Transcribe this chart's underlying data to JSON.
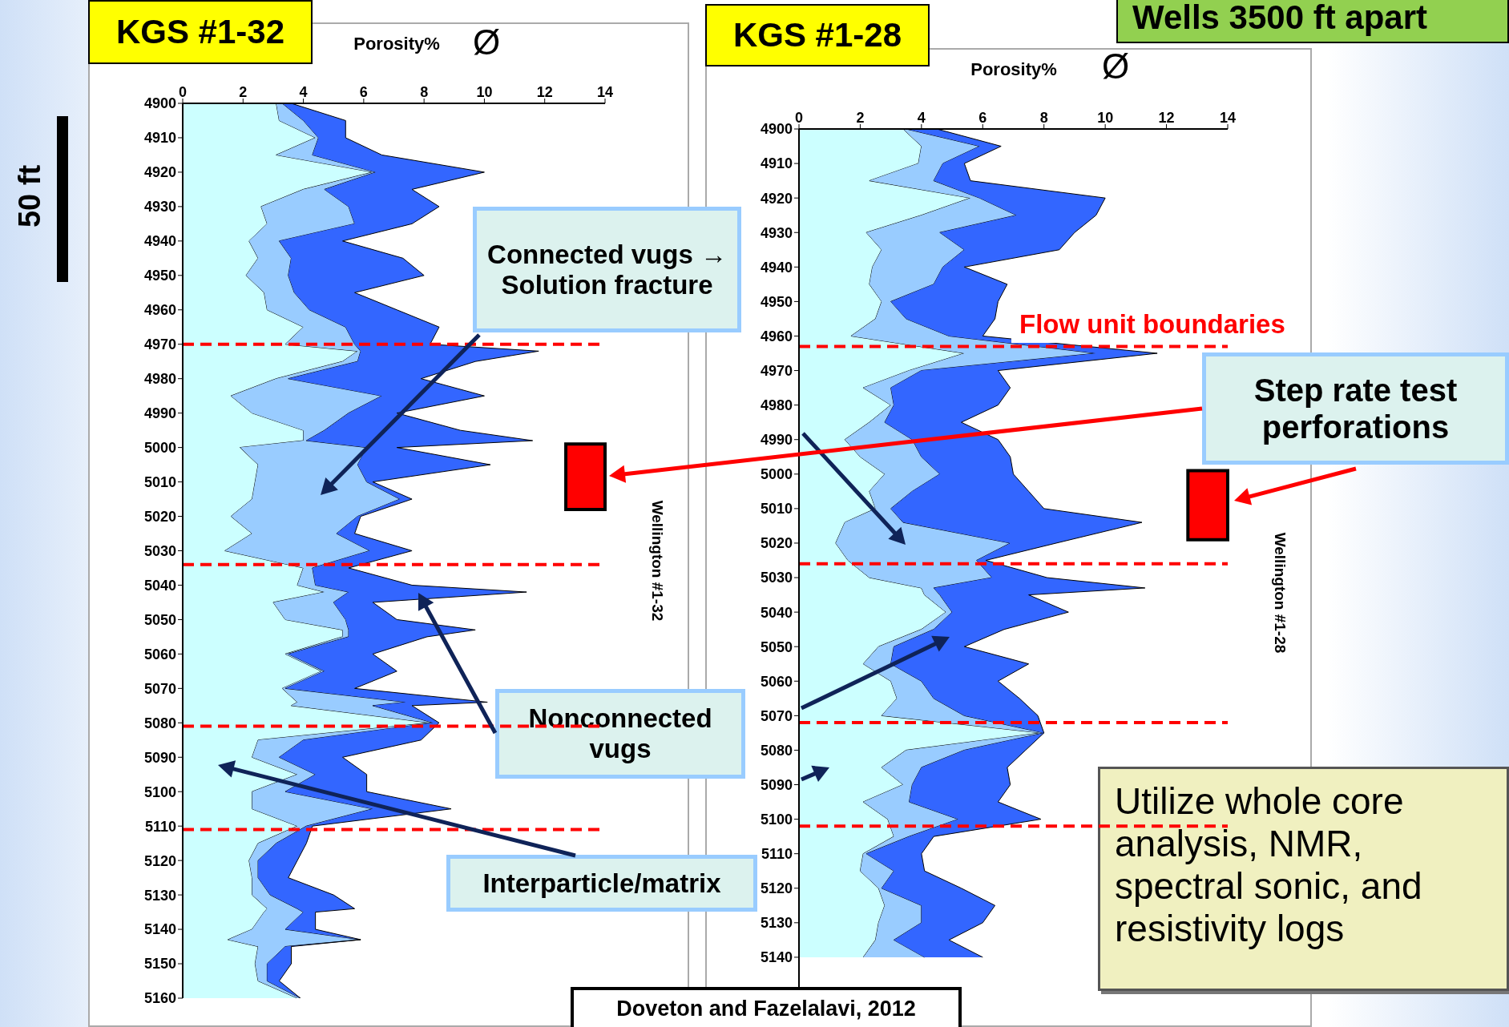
{
  "chart_data": [
    {
      "type": "area",
      "title": "KGS #1-32",
      "xlabel": "Porosity%",
      "orientation": "horizontal",
      "stacked": true,
      "annotations": [
        "Ø",
        "Wellington #1-32",
        "50 ft",
        "Connected vugs → Solution fracture",
        "Nonconnected vugs",
        "Interparticle/matrix",
        "Doveton and Fazelalavi, 2012"
      ],
      "x": [
        4900,
        4905,
        4910,
        4915,
        4920,
        4925,
        4930,
        4935,
        4940,
        4945,
        4950,
        4955,
        4960,
        4965,
        4970,
        4972,
        4975,
        4980,
        4985,
        4990,
        4995,
        4998,
        5000,
        5005,
        5010,
        5015,
        5020,
        5025,
        5030,
        5035,
        5040,
        5042,
        5045,
        5050,
        5053,
        5055,
        5060,
        5065,
        5070,
        5074,
        5075,
        5080,
        5085,
        5090,
        5095,
        5100,
        5105,
        5110,
        5115,
        5120,
        5125,
        5130,
        5134,
        5135,
        5140,
        5143,
        5145,
        5150,
        5155,
        5160
      ],
      "series": [
        {
          "color": "#ccffff",
          "values": [
            3.1,
            3.2,
            4.4,
            3.1,
            6.3,
            4.0,
            2.6,
            2.8,
            2.2,
            2.5,
            2.1,
            2.7,
            2.8,
            4.0,
            3.4,
            5.8,
            5.3,
            3.1,
            1.6,
            2.3,
            4.0,
            4.0,
            1.9,
            2.5,
            2.4,
            2.3,
            1.6,
            2.3,
            1.4,
            4.0,
            3.8,
            4.7,
            3.0,
            3.4,
            5.3,
            5.3,
            3.4,
            4.6,
            3.3,
            3.8,
            3.6,
            8.2,
            2.5,
            2.3,
            3.8,
            2.3,
            2.3,
            3.8,
            2.5,
            2.2,
            2.3,
            2.3,
            2.8,
            2.7,
            2.3,
            1.5,
            2.5,
            2.4,
            2.5,
            3.8
          ]
        },
        {
          "color": "#99ccff",
          "values": [
            0.2,
            0.8,
            0.1,
            1.2,
            0.1,
            0.7,
            2.9,
            2.9,
            1.0,
            1.1,
            1.4,
            1.0,
            1.4,
            1.4,
            2.3,
            0.1,
            0.5,
            0.4,
            5.0,
            3.2,
            0.7,
            0.1,
            4.2,
            3.3,
            3.7,
            4.9,
            4.2,
            2.8,
            4.8,
            0.3,
            0.6,
            0.8,
            2.0,
            2.0,
            0.2,
            0.2,
            0.1,
            0.1,
            0.1,
            3.6,
            2.7,
            0.1,
            1.5,
            0.9,
            0.6,
            1.1,
            4.0,
            0.3,
            0.6,
            0.3,
            0.2,
            0.6,
            1.0,
            1.3,
            1.1,
            4.4,
            0.9,
            0.4,
            0.3,
            0.1
          ]
        },
        {
          "color": "#3366ff",
          "values": [
            0.3,
            1.4,
            0.9,
            2.3,
            3.6,
            2.9,
            3.0,
            1.9,
            2.1,
            3.7,
            4.5,
            2.0,
            2.9,
            3.1,
            2.5,
            5.9,
            3.9,
            4.4,
            3.4,
            1.6,
            4.5,
            7.5,
            1.0,
            4.4,
            0.2,
            0.4,
            0.1,
            0.6,
            1.4,
            1.2,
            3.2,
            5.9,
            1.3,
            1.7,
            4.2,
            2.6,
            2.8,
            2.4,
            2.3,
            2.7,
            1.3,
            0.2,
            3.9,
            2.1,
            1.7,
            2.7,
            2.6,
            0.2,
            1.0,
            1.3,
            1.0,
            2.1,
            1.9,
            0.4,
            1.0,
            0.0,
            0.2,
            0.8,
            0.4,
            0.0
          ]
        }
      ],
      "xlim": [
        0,
        14
      ],
      "xticks": [
        0,
        2,
        4,
        6,
        8,
        10,
        12,
        14
      ],
      "ylim": [
        5160,
        4900
      ],
      "yticks": [
        4900,
        4910,
        4920,
        4930,
        4940,
        4950,
        4960,
        4970,
        4980,
        4990,
        5000,
        5010,
        5020,
        5030,
        5040,
        5050,
        5060,
        5070,
        5080,
        5090,
        5100,
        5110,
        5120,
        5130,
        5140,
        5150,
        5160
      ],
      "ref_lines": [
        {
          "axis": "y",
          "value": 4970,
          "color": "#ff0000",
          "line_style": "dashed"
        },
        {
          "axis": "y",
          "value": 5034,
          "color": "#ff0000",
          "line_style": "dashed"
        },
        {
          "axis": "y",
          "value": 5081,
          "color": "#ff0000",
          "line_style": "dashed"
        },
        {
          "axis": "y",
          "value": 5111,
          "color": "#ff0000",
          "line_style": "dashed"
        }
      ],
      "bands": [
        {
          "axis": "y",
          "from": 4999,
          "to": 5018,
          "color": "#ff0000"
        }
      ]
    },
    {
      "type": "area",
      "title": "KGS #1-28",
      "xlabel": "Porosity%",
      "orientation": "horizontal",
      "stacked": true,
      "annotations": [
        "Ø",
        "Wellington #1-28",
        "Wells 3500 ft apart",
        "Step rate test perforations",
        "Utilize whole core analysis, NMR, spectral sonic, and resistivity logs"
      ],
      "x": [
        4900,
        4905,
        4910,
        4915,
        4920,
        4925,
        4930,
        4935,
        4940,
        4945,
        4950,
        4955,
        4960,
        4965,
        4970,
        4975,
        4980,
        4985,
        4990,
        4995,
        5000,
        5005,
        5010,
        5014,
        5020,
        5025,
        5030,
        5033,
        5035,
        5040,
        5045,
        5050,
        5055,
        5060,
        5065,
        5070,
        5075,
        5080,
        5085,
        5090,
        5095,
        5100,
        5105,
        5110,
        5115,
        5120,
        5125,
        5130,
        5135,
        5140
      ],
      "series": [
        {
          "color": "#ccffff",
          "values": [
            3.4,
            4.0,
            3.9,
            2.3,
            5.6,
            4.0,
            2.2,
            2.7,
            2.4,
            2.3,
            2.7,
            2.5,
            1.7,
            5.4,
            3.6,
            2.1,
            3.0,
            2.3,
            1.5,
            2.0,
            2.8,
            2.3,
            2.5,
            1.5,
            1.2,
            1.6,
            2.3,
            4.0,
            4.1,
            4.8,
            4.0,
            2.6,
            2.1,
            3.0,
            3.2,
            2.7,
            7.9,
            3.5,
            2.7,
            3.4,
            2.1,
            2.9,
            3.1,
            2.1,
            2.0,
            2.6,
            2.8,
            2.6,
            2.5,
            2.1
          ]
        },
        {
          "color": "#99ccff",
          "values": [
            0.1,
            1.9,
            0.8,
            2.1,
            0.3,
            3.1,
            2.4,
            2.7,
            2.3,
            2.1,
            0.3,
            1.0,
            3.2,
            4.3,
            0.4,
            0.9,
            0.1,
            0.5,
            2.2,
            2.0,
            1.8,
            1.4,
            0.5,
            1.9,
            5.7,
            4.2,
            4.0,
            0.4,
            0.5,
            0.2,
            0.4,
            0.5,
            0.9,
            1.0,
            1.2,
            2.7,
            0.1,
            1.9,
            1.3,
            0.3,
            1.5,
            2.3,
            0.5,
            0.1,
            1.1,
            0.1,
            1.2,
            1.4,
            0.6,
            2.0
          ]
        },
        {
          "color": "#3366ff",
          "values": [
            1.0,
            0.7,
            0.7,
            1.2,
            4.1,
            2.6,
            4.4,
            3.1,
            0.7,
            2.4,
            3.5,
            2.9,
            1.1,
            2.0,
            2.5,
            3.9,
            3.4,
            2.5,
            2.8,
            2.9,
            2.4,
            3.8,
            5.0,
            7.8,
            1.5,
            0.3,
            1.8,
            6.9,
            2.9,
            3.8,
            2.3,
            2.3,
            4.5,
            2.5,
            2.8,
            2.4,
            0.0,
            2.0,
            2.8,
            3.2,
            2.9,
            2.7,
            0.8,
            1.8,
            1.0,
            2.6,
            2.4,
            2.0,
            1.8,
            1.9
          ]
        }
      ],
      "xlim": [
        0,
        14
      ],
      "xticks": [
        0,
        2,
        4,
        6,
        8,
        10,
        12,
        14
      ],
      "ylim": [
        5150,
        4900
      ],
      "yticks": [
        4900,
        4910,
        4920,
        4930,
        4940,
        4950,
        4960,
        4970,
        4980,
        4990,
        5000,
        5010,
        5020,
        5030,
        5040,
        5050,
        5060,
        5070,
        5080,
        5090,
        5100,
        5110,
        5120,
        5130,
        5140
      ],
      "ref_lines": [
        {
          "axis": "y",
          "value": 4963,
          "color": "#ff0000",
          "line_style": "dashed",
          "label": "Flow unit boundaries"
        },
        {
          "axis": "y",
          "value": 5026,
          "color": "#ff0000",
          "line_style": "dashed"
        },
        {
          "axis": "y",
          "value": 5072,
          "color": "#ff0000",
          "line_style": "dashed"
        },
        {
          "axis": "y",
          "value": 5102,
          "color": "#ff0000",
          "line_style": "dashed"
        }
      ],
      "bands": [
        {
          "axis": "y",
          "from": 4999,
          "to": 5019,
          "color": "#ff0000"
        }
      ]
    }
  ]
}
